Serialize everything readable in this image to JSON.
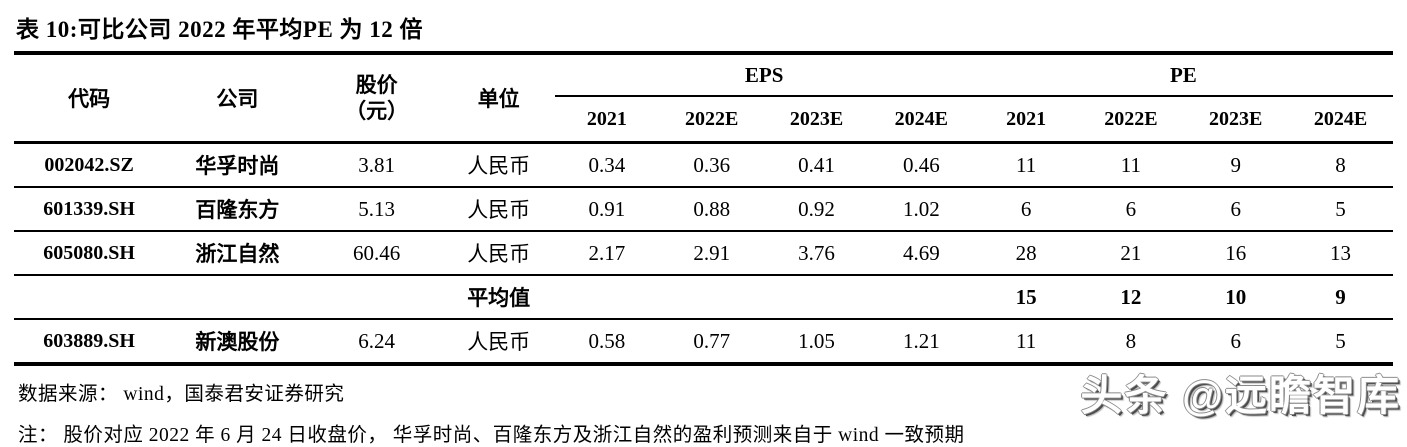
{
  "title": "表 10:可比公司 2022 年平均PE 为 12 倍",
  "table": {
    "header": {
      "code": "代码",
      "company": "公司",
      "price_line1": "股价",
      "price_line2": "（元）",
      "unit": "单位",
      "eps_group": "EPS",
      "pe_group": "PE",
      "years": [
        "2021",
        "2022E",
        "2023E",
        "2024E",
        "2021",
        "2022E",
        "2023E",
        "2024E"
      ]
    },
    "rows": [
      {
        "code": "002042.SZ",
        "company": "华孚时尚",
        "price": "3.81",
        "unit": "人民币",
        "eps": [
          "0.34",
          "0.36",
          "0.41",
          "0.46"
        ],
        "pe": [
          "11",
          "11",
          "9",
          "8"
        ]
      },
      {
        "code": "601339.SH",
        "company": "百隆东方",
        "price": "5.13",
        "unit": "人民币",
        "eps": [
          "0.91",
          "0.88",
          "0.92",
          "1.02"
        ],
        "pe": [
          "6",
          "6",
          "6",
          "5"
        ]
      },
      {
        "code": "605080.SH",
        "company": "浙江自然",
        "price": "60.46",
        "unit": "人民币",
        "eps": [
          "2.17",
          "2.91",
          "3.76",
          "4.69"
        ],
        "pe": [
          "28",
          "21",
          "16",
          "13"
        ]
      },
      {
        "code": "",
        "company": "",
        "price": "",
        "unit": "平均值",
        "eps": [
          "",
          "",
          "",
          ""
        ],
        "pe": [
          "15",
          "12",
          "10",
          "9"
        ]
      },
      {
        "code": "603889.SH",
        "company": "新澳股份",
        "price": "6.24",
        "unit": "人民币",
        "eps": [
          "0.58",
          "0.77",
          "1.05",
          "1.21"
        ],
        "pe": [
          "11",
          "8",
          "6",
          "5"
        ]
      }
    ]
  },
  "source": "数据来源： wind，国泰君安证券研究",
  "note": "注： 股价对应 2022 年 6 月 24 日收盘价， 华孚时尚、百隆东方及浙江自然的盈利预测来自于 wind 一致预期",
  "watermark": "头条 @远瞻智库"
}
